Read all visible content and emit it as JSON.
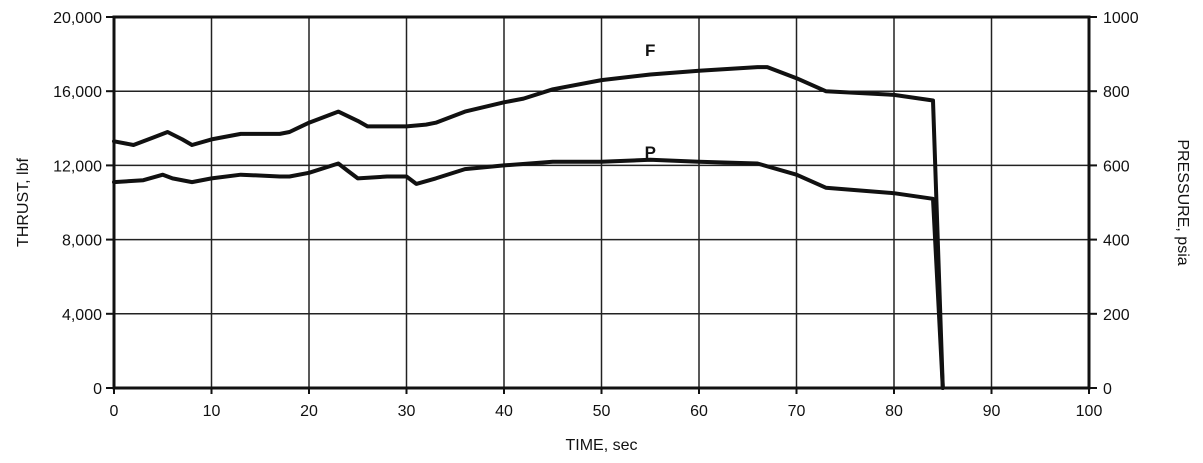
{
  "chart_data": {
    "type": "line",
    "xlabel": "TIME, sec",
    "ylabel_left": "THRUST, lbf",
    "ylabel_right": "PRESSURE, psia",
    "xlim": [
      0,
      100
    ],
    "ylim_left": [
      0,
      20000
    ],
    "ylim_right": [
      0,
      1000
    ],
    "grid": true,
    "x_ticks": [
      0,
      10,
      20,
      30,
      40,
      50,
      60,
      70,
      80,
      90,
      100
    ],
    "x_tick_labels": [
      "0",
      "10",
      "20",
      "30",
      "40",
      "50",
      "60",
      "70",
      "80",
      "90",
      "100"
    ],
    "y_left_ticks": [
      0,
      4000,
      8000,
      12000,
      16000,
      20000
    ],
    "y_left_tick_labels": [
      "0",
      "4,000",
      "8,000",
      "12,000",
      "16,000",
      "20,000"
    ],
    "y_right_ticks": [
      0,
      200,
      400,
      600,
      800,
      1000
    ],
    "y_right_tick_labels": [
      "0",
      "200",
      "400",
      "600",
      "800",
      "1000"
    ],
    "series": [
      {
        "name": "F",
        "axis": "left",
        "label_at": [
          55,
          17900
        ],
        "points": [
          [
            0,
            13300
          ],
          [
            2,
            13100
          ],
          [
            4,
            13500
          ],
          [
            5.5,
            13800
          ],
          [
            7,
            13400
          ],
          [
            8,
            13100
          ],
          [
            10,
            13400
          ],
          [
            13,
            13700
          ],
          [
            17,
            13700
          ],
          [
            18,
            13800
          ],
          [
            20,
            14300
          ],
          [
            23,
            14900
          ],
          [
            25,
            14400
          ],
          [
            26,
            14100
          ],
          [
            30,
            14100
          ],
          [
            32,
            14200
          ],
          [
            33,
            14300
          ],
          [
            36,
            14900
          ],
          [
            40,
            15400
          ],
          [
            42,
            15600
          ],
          [
            45,
            16100
          ],
          [
            50,
            16600
          ],
          [
            55,
            16900
          ],
          [
            60,
            17100
          ],
          [
            66,
            17300
          ],
          [
            67,
            17300
          ],
          [
            70,
            16700
          ],
          [
            73,
            16000
          ],
          [
            80,
            15800
          ],
          [
            84,
            15500
          ],
          [
            85,
            0
          ]
        ]
      },
      {
        "name": "P",
        "axis": "left",
        "label_at": [
          55,
          12400
        ],
        "points": [
          [
            0,
            11100
          ],
          [
            3,
            11200
          ],
          [
            5,
            11500
          ],
          [
            6,
            11300
          ],
          [
            8,
            11100
          ],
          [
            10,
            11300
          ],
          [
            13,
            11500
          ],
          [
            17,
            11400
          ],
          [
            18,
            11400
          ],
          [
            20,
            11600
          ],
          [
            23,
            12100
          ],
          [
            24,
            11700
          ],
          [
            25,
            11300
          ],
          [
            28,
            11400
          ],
          [
            30,
            11400
          ],
          [
            31,
            11000
          ],
          [
            33,
            11300
          ],
          [
            36,
            11800
          ],
          [
            40,
            12000
          ],
          [
            45,
            12200
          ],
          [
            50,
            12200
          ],
          [
            55,
            12300
          ],
          [
            60,
            12200
          ],
          [
            66,
            12100
          ],
          [
            70,
            11500
          ],
          [
            73,
            10800
          ],
          [
            80,
            10500
          ],
          [
            84,
            10200
          ],
          [
            85,
            0
          ]
        ]
      }
    ]
  }
}
